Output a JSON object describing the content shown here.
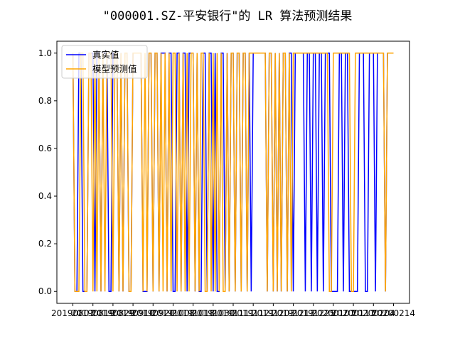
{
  "chart_data": {
    "type": "line",
    "title": "\"000001.SZ-平安银行\"的 LR 算法预测结果",
    "xlabel": "",
    "ylabel": "",
    "ylim": [
      -0.05,
      1.05
    ],
    "yticks": [
      "0.0",
      "0.2",
      "0.4",
      "0.6",
      "0.8",
      "1.0"
    ],
    "xticks": [
      "20190807",
      "20190819",
      "20190829",
      "20190910",
      "20190920",
      "20191008",
      "20191018",
      "20191030",
      "20191111",
      "20191121",
      "20191203",
      "20191213",
      "20191225",
      "20200107",
      "20200117",
      "20200204",
      "20200214"
    ],
    "legend": {
      "position": "top-left",
      "entries": [
        "真实值",
        "模型预测值"
      ]
    },
    "grid": false,
    "colors": {
      "真实值": "#0000ff",
      "模型预测值": "#ffa500"
    },
    "x": [
      0,
      1,
      2,
      3,
      4,
      5,
      6,
      7,
      8,
      9,
      10,
      11,
      12,
      13,
      14,
      15,
      16,
      17,
      18,
      19,
      20,
      21,
      22,
      23,
      24,
      25,
      26,
      27,
      28,
      29,
      30,
      31,
      32,
      33,
      34,
      35,
      36,
      37,
      38,
      39,
      40,
      41,
      42,
      43,
      44,
      45,
      46,
      47,
      48,
      49,
      50,
      51,
      52,
      53,
      54,
      55,
      56,
      57,
      58,
      59,
      60,
      61,
      62,
      63,
      64,
      65,
      66,
      67,
      68,
      69,
      70,
      71,
      72,
      73,
      74,
      75,
      76,
      77,
      78,
      79,
      80,
      81,
      82,
      83,
      84,
      85,
      86,
      87,
      88,
      89,
      90,
      91,
      92,
      93,
      94,
      95,
      96,
      97,
      98,
      99,
      100,
      101,
      102,
      103,
      104,
      105,
      106,
      107,
      108,
      109,
      110,
      111,
      112,
      113,
      114,
      115,
      116,
      117,
      118,
      119,
      120,
      121,
      122,
      123,
      124,
      125,
      126,
      127,
      128,
      129,
      130,
      131,
      132,
      133,
      134,
      135,
      136,
      137,
      138,
      139,
      140,
      141,
      142,
      143,
      144,
      145,
      146,
      147,
      148,
      149,
      150,
      151,
      152,
      153,
      154,
      155,
      156,
      157,
      158,
      159,
      160
    ],
    "series": [
      {
        "name": "真实值",
        "values": [
          1,
          0,
          0,
          1,
          1,
          0,
          0,
          0,
          1,
          1,
          1,
          0,
          1,
          1,
          0,
          1,
          1,
          1,
          0,
          0,
          1,
          1,
          1,
          0,
          1,
          0,
          1,
          1,
          0,
          0,
          1,
          1,
          1,
          1,
          1,
          0,
          0,
          0,
          1,
          1,
          0,
          1,
          1,
          0,
          1,
          1,
          1,
          0,
          1,
          1,
          0,
          0,
          1,
          1,
          0,
          1,
          1,
          0,
          1,
          1,
          1,
          0,
          1,
          0,
          0,
          1,
          1,
          0,
          1,
          1,
          0,
          1,
          0,
          0,
          1,
          1,
          0,
          1,
          0,
          1,
          1,
          0,
          1,
          1,
          0,
          1,
          1,
          0,
          1,
          0,
          1,
          1,
          1,
          1,
          1,
          1,
          1,
          0,
          1,
          1,
          0,
          1,
          0,
          1,
          0,
          1,
          1,
          0,
          1,
          1,
          0,
          1,
          1,
          1,
          1,
          1,
          0,
          1,
          1,
          0,
          1,
          1,
          0,
          1,
          1,
          0,
          1,
          1,
          1,
          0,
          0,
          0,
          0,
          1,
          1,
          0,
          1,
          1,
          0,
          0,
          0,
          0,
          0,
          1,
          1,
          1,
          0,
          0,
          1,
          1,
          1,
          0,
          1,
          1,
          1,
          1,
          0,
          1,
          1,
          1,
          1
        ]
      },
      {
        "name": "模型预测值",
        "values": [
          1,
          0,
          0,
          0,
          1,
          1,
          0,
          0,
          1,
          1,
          0,
          1,
          0,
          1,
          0,
          1,
          0,
          1,
          1,
          1,
          0,
          1,
          1,
          0,
          1,
          0,
          1,
          1,
          0,
          0,
          1,
          1,
          1,
          1,
          1,
          0,
          1,
          0,
          1,
          1,
          0,
          1,
          1,
          0,
          1,
          0,
          1,
          0,
          1,
          0,
          1,
          1,
          0,
          1,
          0,
          1,
          0,
          1,
          0,
          1,
          1,
          0,
          1,
          0,
          1,
          1,
          0,
          0,
          1,
          0,
          1,
          0,
          1,
          0,
          1,
          0,
          0,
          1,
          0,
          1,
          1,
          0,
          1,
          1,
          0,
          1,
          1,
          0,
          1,
          1,
          1,
          1,
          1,
          1,
          1,
          1,
          1,
          0,
          1,
          1,
          0,
          1,
          0,
          1,
          0,
          1,
          1,
          0,
          1,
          0,
          1,
          1,
          1,
          1,
          1,
          1,
          1,
          1,
          1,
          1,
          1,
          1,
          1,
          1,
          1,
          1,
          1,
          1,
          0,
          0,
          1,
          1,
          1,
          1,
          1,
          1,
          1,
          1,
          1,
          0,
          0,
          1,
          1,
          1,
          1,
          1,
          1,
          1,
          1,
          1,
          1,
          1,
          1,
          1,
          1,
          1,
          0,
          1,
          1,
          1,
          1
        ]
      }
    ]
  }
}
